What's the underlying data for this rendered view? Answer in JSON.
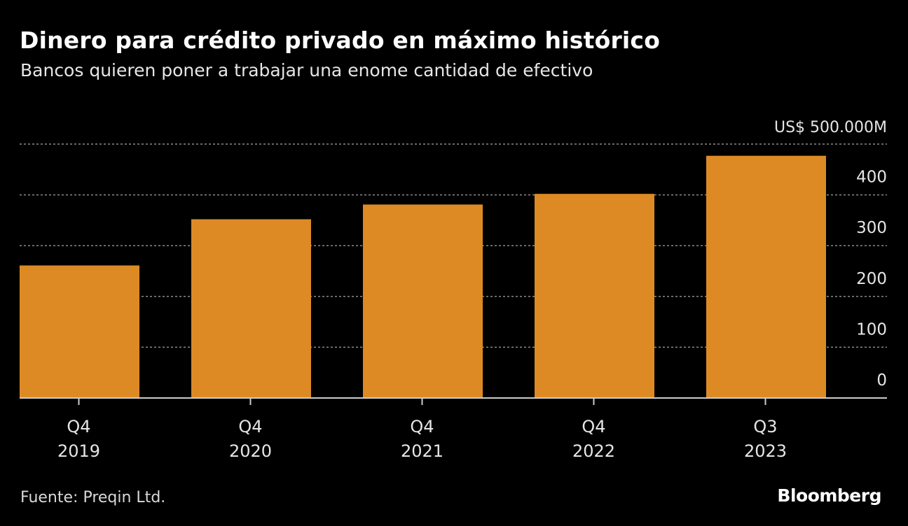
{
  "header": {
    "title": "Dinero para crédito privado en máximo histórico",
    "subtitle": "Bancos quieren poner a trabajar una enome cantidad de efectivo"
  },
  "chart_data": {
    "type": "bar",
    "title": "Dinero para crédito privado en máximo histórico",
    "subtitle": "Bancos quieren poner a trabajar una enome cantidad de efectivo",
    "unit_label": "US$ 500.000M",
    "categories": [
      {
        "quarter": "Q4",
        "year": "2019"
      },
      {
        "quarter": "Q4",
        "year": "2020"
      },
      {
        "quarter": "Q4",
        "year": "2021"
      },
      {
        "quarter": "Q4",
        "year": "2022"
      },
      {
        "quarter": "Q3",
        "year": "2023"
      }
    ],
    "values": [
      261,
      352,
      381,
      402,
      477
    ],
    "ylim": [
      0,
      500
    ],
    "yticks": [
      0,
      100,
      200,
      300,
      400,
      500
    ],
    "ytick_labels": [
      "0",
      "100",
      "200",
      "300",
      "400",
      "US$ 500.000M"
    ],
    "grid": true,
    "xlabel": "",
    "ylabel": "",
    "bar_color": "#dd8a25",
    "grid_color": "#8a8a8a",
    "axis_color": "#cccccc"
  },
  "footer": {
    "source": "Fuente: Preqin Ltd.",
    "brand": "Bloomberg"
  }
}
